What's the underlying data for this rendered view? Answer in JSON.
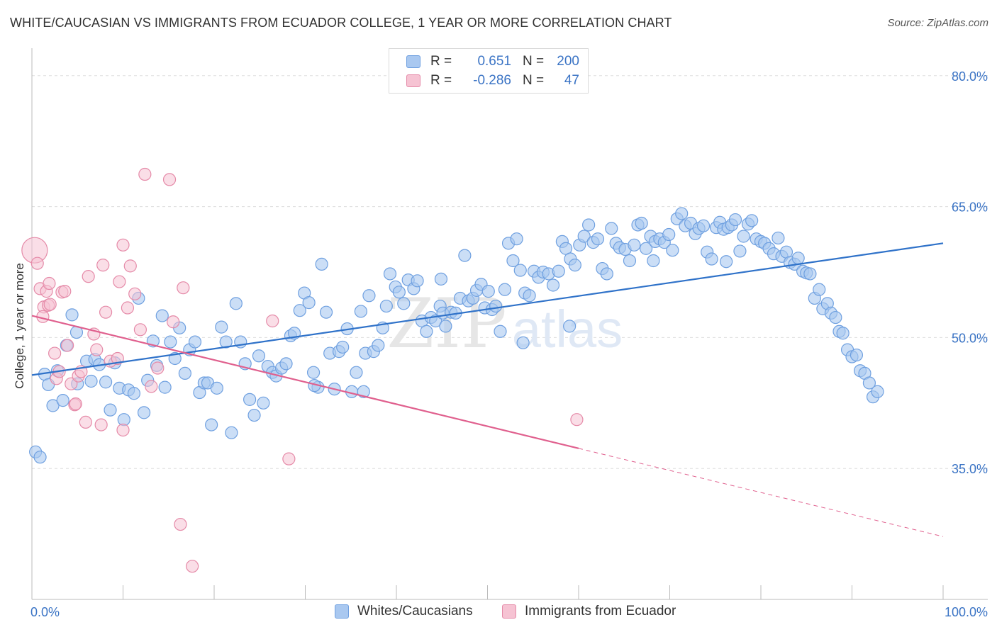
{
  "title": "WHITE/CAUCASIAN VS IMMIGRANTS FROM ECUADOR COLLEGE, 1 YEAR OR MORE CORRELATION CHART",
  "source": "Source: ZipAtlas.com",
  "watermark": {
    "zip": "ZIP",
    "atlas": "atlas"
  },
  "colors": {
    "blue": "#6fa0e0",
    "blue_fill": "#a9c8f0",
    "blue_line": "#2f72c9",
    "pink": "#e58aa8",
    "pink_fill": "#f6c3d3",
    "pink_line": "#e0608e",
    "grid": "#dddddd",
    "tick_label": "#3b74c5"
  },
  "legend": {
    "rows": [
      {
        "r_key": "R =",
        "r_value": "0.651",
        "n_key": "N =",
        "n_value": "200"
      },
      {
        "r_key": "R =",
        "r_value": "-0.286",
        "n_key": "N =",
        "n_value": "47"
      }
    ]
  },
  "bottom_legend": [
    "Whites/Caucasians",
    "Immigrants from Ecuador"
  ],
  "chart_data": {
    "type": "scatter",
    "title": "WHITE/CAUCASIAN VS IMMIGRANTS FROM ECUADOR COLLEGE, 1 YEAR OR MORE CORRELATION CHART",
    "xlabel": "",
    "ylabel": "College, 1 year or more",
    "xlim": [
      0,
      100
    ],
    "ylim": [
      20,
      82.5
    ],
    "x_tick_labels": [
      "0.0%",
      "100.0%"
    ],
    "y_ticks": [
      35,
      50,
      65,
      80
    ],
    "y_tick_labels": [
      "35.0%",
      "50.0%",
      "65.0%",
      "80.0%"
    ],
    "grid": true,
    "legend_position": "top-center",
    "series": [
      {
        "name": "Whites/Caucasians",
        "r": 0.651,
        "n": 200,
        "trend": {
          "x": [
            0,
            100
          ],
          "y": [
            45.7,
            60.8
          ],
          "style": "solid"
        },
        "points": [
          [
            0.4,
            36.9
          ],
          [
            0.9,
            36.3
          ],
          [
            1.4,
            45.8
          ],
          [
            1.8,
            44.6
          ],
          [
            2.3,
            42.2
          ],
          [
            2.8,
            46.2
          ],
          [
            3.4,
            42.8
          ],
          [
            3.8,
            49.1
          ],
          [
            4.4,
            52.6
          ],
          [
            4.9,
            50.6
          ],
          [
            5.0,
            44.7
          ],
          [
            6.0,
            47.3
          ],
          [
            6.5,
            45.0
          ],
          [
            6.9,
            47.5
          ],
          [
            7.4,
            46.9
          ],
          [
            8.1,
            44.9
          ],
          [
            8.6,
            41.7
          ],
          [
            9.1,
            47.1
          ],
          [
            9.6,
            44.2
          ],
          [
            10.1,
            40.6
          ],
          [
            10.6,
            44.0
          ],
          [
            11.2,
            43.6
          ],
          [
            11.7,
            54.5
          ],
          [
            12.3,
            41.4
          ],
          [
            12.7,
            45.1
          ],
          [
            13.3,
            49.6
          ],
          [
            13.7,
            46.8
          ],
          [
            14.3,
            52.5
          ],
          [
            14.6,
            44.3
          ],
          [
            15.2,
            49.5
          ],
          [
            15.7,
            47.6
          ],
          [
            16.2,
            51.1
          ],
          [
            16.8,
            45.9
          ],
          [
            17.3,
            48.6
          ],
          [
            17.9,
            49.5
          ],
          [
            18.4,
            43.7
          ],
          [
            18.9,
            44.8
          ],
          [
            19.3,
            44.8
          ],
          [
            19.7,
            40.0
          ],
          [
            20.3,
            44.2
          ],
          [
            20.8,
            51.2
          ],
          [
            21.3,
            49.5
          ],
          [
            21.9,
            39.1
          ],
          [
            22.4,
            53.9
          ],
          [
            22.9,
            49.5
          ],
          [
            23.4,
            47.0
          ],
          [
            23.9,
            42.9
          ],
          [
            24.4,
            41.1
          ],
          [
            24.9,
            47.9
          ],
          [
            25.4,
            42.5
          ],
          [
            25.9,
            46.7
          ],
          [
            26.4,
            46.0
          ],
          [
            26.8,
            45.6
          ],
          [
            27.4,
            46.5
          ],
          [
            27.9,
            47.0
          ],
          [
            28.4,
            50.2
          ],
          [
            28.8,
            50.5
          ],
          [
            29.4,
            53.1
          ],
          [
            29.9,
            55.1
          ],
          [
            30.4,
            54.0
          ],
          [
            30.9,
            46.0
          ],
          [
            31.4,
            44.3
          ],
          [
            31.8,
            58.4
          ],
          [
            32.3,
            52.9
          ],
          [
            32.7,
            48.2
          ],
          [
            33.2,
            44.1
          ],
          [
            33.7,
            48.4
          ],
          [
            34.1,
            48.9
          ],
          [
            34.6,
            51.0
          ],
          [
            35.1,
            43.8
          ],
          [
            35.6,
            46.0
          ],
          [
            36.1,
            53.0
          ],
          [
            36.6,
            48.2
          ],
          [
            37.0,
            54.8
          ],
          [
            37.5,
            48.4
          ],
          [
            38.0,
            49.1
          ],
          [
            38.5,
            51.1
          ],
          [
            38.9,
            53.6
          ],
          [
            39.3,
            57.3
          ],
          [
            39.9,
            55.8
          ],
          [
            40.3,
            55.2
          ],
          [
            40.8,
            53.9
          ],
          [
            41.3,
            56.6
          ],
          [
            41.9,
            55.6
          ],
          [
            42.3,
            56.5
          ],
          [
            42.8,
            51.9
          ],
          [
            43.3,
            50.7
          ],
          [
            43.8,
            52.3
          ],
          [
            44.3,
            51.9
          ],
          [
            44.8,
            53.6
          ],
          [
            45.1,
            52.8
          ],
          [
            45.4,
            51.3
          ],
          [
            46.0,
            52.9
          ],
          [
            46.5,
            52.8
          ],
          [
            47.0,
            54.5
          ],
          [
            47.5,
            59.4
          ],
          [
            47.9,
            54.2
          ],
          [
            48.4,
            54.5
          ],
          [
            48.8,
            55.4
          ],
          [
            49.3,
            56.1
          ],
          [
            49.7,
            53.4
          ],
          [
            50.1,
            55.3
          ],
          [
            50.5,
            53.2
          ],
          [
            50.9,
            53.6
          ],
          [
            51.4,
            50.7
          ],
          [
            51.9,
            55.5
          ],
          [
            52.3,
            60.8
          ],
          [
            52.8,
            58.8
          ],
          [
            53.2,
            61.3
          ],
          [
            53.6,
            57.7
          ],
          [
            54.1,
            55.1
          ],
          [
            54.6,
            54.8
          ],
          [
            55.1,
            57.6
          ],
          [
            55.6,
            56.9
          ],
          [
            56.1,
            57.5
          ],
          [
            56.7,
            57.3
          ],
          [
            57.2,
            56.0
          ],
          [
            57.8,
            57.6
          ],
          [
            58.2,
            61.0
          ],
          [
            58.6,
            60.2
          ],
          [
            59.1,
            59.0
          ],
          [
            59.6,
            58.3
          ],
          [
            60.1,
            60.6
          ],
          [
            60.6,
            61.6
          ],
          [
            61.1,
            62.9
          ],
          [
            61.6,
            60.9
          ],
          [
            62.1,
            61.3
          ],
          [
            62.6,
            57.9
          ],
          [
            63.1,
            57.3
          ],
          [
            63.6,
            62.5
          ],
          [
            64.1,
            60.8
          ],
          [
            64.5,
            60.3
          ],
          [
            65.1,
            60.1
          ],
          [
            65.6,
            58.8
          ],
          [
            66.1,
            60.6
          ],
          [
            66.5,
            62.9
          ],
          [
            66.9,
            63.1
          ],
          [
            67.4,
            60.2
          ],
          [
            67.9,
            61.6
          ],
          [
            68.4,
            61.0
          ],
          [
            68.9,
            61.3
          ],
          [
            69.4,
            60.9
          ],
          [
            69.9,
            61.8
          ],
          [
            70.3,
            60.0
          ],
          [
            70.8,
            63.6
          ],
          [
            71.3,
            64.2
          ],
          [
            71.7,
            62.8
          ],
          [
            72.3,
            63.1
          ],
          [
            72.8,
            61.9
          ],
          [
            73.2,
            62.5
          ],
          [
            73.7,
            62.8
          ],
          [
            74.1,
            59.8
          ],
          [
            74.6,
            59.0
          ],
          [
            75.1,
            62.6
          ],
          [
            75.5,
            63.2
          ],
          [
            75.9,
            62.4
          ],
          [
            76.4,
            62.6
          ],
          [
            76.8,
            62.9
          ],
          [
            77.2,
            63.5
          ],
          [
            77.7,
            59.9
          ],
          [
            78.1,
            61.6
          ],
          [
            78.6,
            63.0
          ],
          [
            79.0,
            63.4
          ],
          [
            79.5,
            61.3
          ],
          [
            80.0,
            61.0
          ],
          [
            80.4,
            60.8
          ],
          [
            80.9,
            60.2
          ],
          [
            81.4,
            59.6
          ],
          [
            81.9,
            61.4
          ],
          [
            82.3,
            59.3
          ],
          [
            82.8,
            59.8
          ],
          [
            83.2,
            58.6
          ],
          [
            83.7,
            58.4
          ],
          [
            84.1,
            59.1
          ],
          [
            84.6,
            57.6
          ],
          [
            85.0,
            57.4
          ],
          [
            85.4,
            57.3
          ],
          [
            85.9,
            54.5
          ],
          [
            86.4,
            55.5
          ],
          [
            86.8,
            53.3
          ],
          [
            87.3,
            53.9
          ],
          [
            87.7,
            52.8
          ],
          [
            88.2,
            52.3
          ],
          [
            88.6,
            50.7
          ],
          [
            89.0,
            50.5
          ],
          [
            89.5,
            48.6
          ],
          [
            90.0,
            47.8
          ],
          [
            90.5,
            48.0
          ],
          [
            90.9,
            46.2
          ],
          [
            91.4,
            45.9
          ],
          [
            91.9,
            44.8
          ],
          [
            92.3,
            43.2
          ],
          [
            92.8,
            43.8
          ],
          [
            53.9,
            49.4
          ],
          [
            59.0,
            51.3
          ],
          [
            44.9,
            56.7
          ],
          [
            31.0,
            44.5
          ],
          [
            36.4,
            43.8
          ],
          [
            68.2,
            58.8
          ],
          [
            76.2,
            58.7
          ]
        ]
      },
      {
        "name": "Immigrants from Ecuador",
        "r": -0.286,
        "n": 47,
        "trend": {
          "x": [
            0,
            60
          ],
          "y": [
            52.5,
            37.3
          ],
          "style": "solid",
          "dashed_extension": {
            "x": [
              60,
              100
            ],
            "y": [
              37.3,
              27.2
            ]
          }
        },
        "points": [
          [
            0.3,
            60.0
          ],
          [
            0.6,
            58.5
          ],
          [
            0.9,
            55.6
          ],
          [
            1.3,
            53.5
          ],
          [
            1.6,
            55.3
          ],
          [
            1.8,
            53.7
          ],
          [
            1.9,
            56.2
          ],
          [
            2.5,
            48.2
          ],
          [
            2.7,
            45.3
          ],
          [
            3.0,
            46.1
          ],
          [
            3.3,
            55.2
          ],
          [
            3.6,
            55.3
          ],
          [
            3.9,
            49.1
          ],
          [
            4.3,
            44.7
          ],
          [
            4.7,
            42.3
          ],
          [
            5.1,
            45.6
          ],
          [
            5.4,
            46.1
          ],
          [
            5.9,
            40.3
          ],
          [
            6.2,
            57.0
          ],
          [
            6.8,
            50.4
          ],
          [
            7.1,
            48.6
          ],
          [
            7.6,
            40.0
          ],
          [
            7.8,
            58.3
          ],
          [
            8.1,
            52.9
          ],
          [
            8.6,
            47.3
          ],
          [
            9.4,
            47.6
          ],
          [
            9.6,
            56.4
          ],
          [
            10.0,
            60.6
          ],
          [
            10.0,
            39.4
          ],
          [
            10.5,
            53.4
          ],
          [
            10.8,
            58.2
          ],
          [
            11.3,
            55.0
          ],
          [
            11.9,
            50.9
          ],
          [
            12.4,
            68.7
          ],
          [
            13.1,
            44.4
          ],
          [
            15.1,
            68.1
          ],
          [
            15.5,
            51.8
          ],
          [
            16.3,
            28.6
          ],
          [
            16.6,
            55.7
          ],
          [
            17.6,
            23.8
          ],
          [
            26.4,
            51.9
          ],
          [
            28.2,
            36.1
          ],
          [
            59.8,
            40.6
          ],
          [
            4.8,
            42.4
          ],
          [
            1.2,
            52.4
          ],
          [
            2.0,
            53.8
          ],
          [
            13.8,
            46.5
          ]
        ]
      }
    ]
  }
}
